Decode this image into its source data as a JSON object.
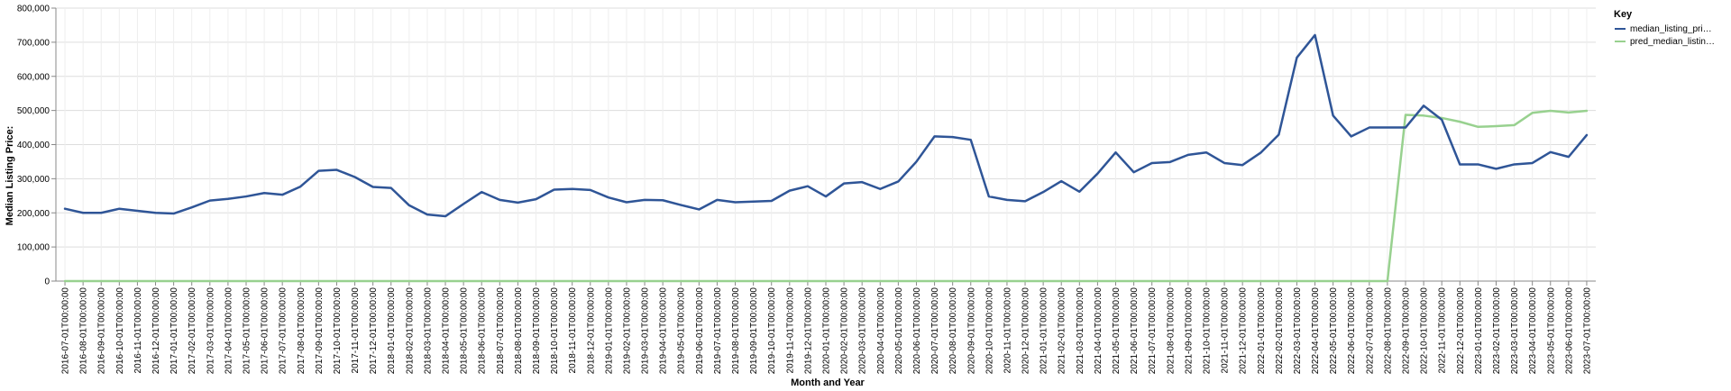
{
  "chart_data": {
    "type": "line",
    "xlabel": "Month and Year",
    "ylabel": "Median Listing Price:",
    "ylim": [
      0,
      800000
    ],
    "yticks": [
      "0",
      "100,000",
      "200,000",
      "300,000",
      "400,000",
      "500,000",
      "600,000",
      "700,000",
      "800,000"
    ],
    "grid": true,
    "legend": {
      "title": "Key",
      "placement": "top-right",
      "entries": [
        {
          "label": "median_listing_pri…",
          "color": "#2f5597"
        },
        {
          "label": "pred_median_listin…",
          "color": "#98d18f"
        }
      ]
    },
    "x": [
      "2016-07-01T00:00:00",
      "2016-08-01T00:00:00",
      "2016-09-01T00:00:00",
      "2016-10-01T00:00:00",
      "2016-11-01T00:00:00",
      "2016-12-01T00:00:00",
      "2017-01-01T00:00:00",
      "2017-02-01T00:00:00",
      "2017-03-01T00:00:00",
      "2017-04-01T00:00:00",
      "2017-05-01T00:00:00",
      "2017-06-01T00:00:00",
      "2017-07-01T00:00:00",
      "2017-08-01T00:00:00",
      "2017-09-01T00:00:00",
      "2017-10-01T00:00:00",
      "2017-11-01T00:00:00",
      "2017-12-01T00:00:00",
      "2018-01-01T00:00:00",
      "2018-02-01T00:00:00",
      "2018-03-01T00:00:00",
      "2018-04-01T00:00:00",
      "2018-05-01T00:00:00",
      "2018-06-01T00:00:00",
      "2018-07-01T00:00:00",
      "2018-08-01T00:00:00",
      "2018-09-01T00:00:00",
      "2018-10-01T00:00:00",
      "2018-11-01T00:00:00",
      "2018-12-01T00:00:00",
      "2019-01-01T00:00:00",
      "2019-02-01T00:00:00",
      "2019-03-01T00:00:00",
      "2019-04-01T00:00:00",
      "2019-05-01T00:00:00",
      "2019-06-01T00:00:00",
      "2019-07-01T00:00:00",
      "2019-08-01T00:00:00",
      "2019-09-01T00:00:00",
      "2019-10-01T00:00:00",
      "2019-11-01T00:00:00",
      "2019-12-01T00:00:00",
      "2020-01-01T00:00:00",
      "2020-02-01T00:00:00",
      "2020-03-01T00:00:00",
      "2020-04-01T00:00:00",
      "2020-05-01T00:00:00",
      "2020-06-01T00:00:00",
      "2020-07-01T00:00:00",
      "2020-08-01T00:00:00",
      "2020-09-01T00:00:00",
      "2020-10-01T00:00:00",
      "2020-11-01T00:00:00",
      "2020-12-01T00:00:00",
      "2021-01-01T00:00:00",
      "2021-02-01T00:00:00",
      "2021-03-01T00:00:00",
      "2021-04-01T00:00:00",
      "2021-05-01T00:00:00",
      "2021-06-01T00:00:00",
      "2021-07-01T00:00:00",
      "2021-08-01T00:00:00",
      "2021-09-01T00:00:00",
      "2021-10-01T00:00:00",
      "2021-11-01T00:00:00",
      "2021-12-01T00:00:00",
      "2022-01-01T00:00:00",
      "2022-02-01T00:00:00",
      "2022-03-01T00:00:00",
      "2022-04-01T00:00:00",
      "2022-05-01T00:00:00",
      "2022-06-01T00:00:00",
      "2022-07-01T00:00:00",
      "2022-08-01T00:00:00",
      "2022-09-01T00:00:00",
      "2022-10-01T00:00:00",
      "2022-11-01T00:00:00",
      "2022-12-01T00:00:00",
      "2023-01-01T00:00:00",
      "2023-02-01T00:00:00",
      "2023-03-01T00:00:00",
      "2023-04-01T00:00:00",
      "2023-05-01T00:00:00",
      "2023-06-01T00:00:00",
      "2023-07-01T00:00:00"
    ],
    "series": [
      {
        "name": "median_listing_pri…",
        "color": "#2f5597",
        "values": [
          212000,
          200000,
          200000,
          212000,
          206000,
          200000,
          198000,
          216000,
          236000,
          241000,
          248000,
          258000,
          253000,
          277000,
          323000,
          326000,
          305000,
          276000,
          273000,
          222000,
          195000,
          190000,
          226000,
          261000,
          238000,
          230000,
          240000,
          268000,
          270000,
          267000,
          245000,
          231000,
          238000,
          237000,
          223000,
          210000,
          238000,
          231000,
          233000,
          235000,
          265000,
          278000,
          248000,
          286000,
          290000,
          270000,
          292000,
          350000,
          424000,
          422000,
          414000,
          248000,
          238000,
          234000,
          261000,
          293000,
          262000,
          315000,
          377000,
          319000,
          346000,
          349000,
          370000,
          377000,
          346000,
          340000,
          376000,
          429000,
          655000,
          721000,
          485000,
          424000,
          450000,
          450000,
          450000,
          514000,
          473000,
          342000,
          342000,
          329000,
          342000,
          346000,
          378000,
          364000,
          428000
        ]
      },
      {
        "name": "pred_median_listin…",
        "color": "#98d18f",
        "values": [
          0,
          0,
          0,
          0,
          0,
          0,
          0,
          0,
          0,
          0,
          0,
          0,
          0,
          0,
          0,
          0,
          0,
          0,
          0,
          0,
          0,
          0,
          0,
          0,
          0,
          0,
          0,
          0,
          0,
          0,
          0,
          0,
          0,
          0,
          0,
          0,
          0,
          0,
          0,
          0,
          0,
          0,
          0,
          0,
          0,
          0,
          0,
          0,
          0,
          0,
          0,
          0,
          0,
          0,
          0,
          0,
          0,
          0,
          0,
          0,
          0,
          0,
          0,
          0,
          0,
          0,
          0,
          0,
          0,
          0,
          0,
          0,
          0,
          0,
          487000,
          485000,
          478000,
          467000,
          452000,
          454000,
          457000,
          493000,
          499000,
          494000,
          499000
        ]
      }
    ]
  }
}
